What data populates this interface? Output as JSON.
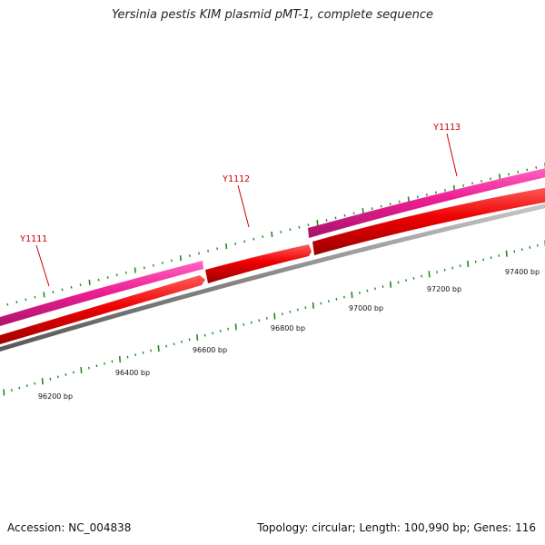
{
  "title": "Yersinia pestis KIM plasmid pMT-1, complete sequence",
  "genes": [
    {
      "label": "Y1111",
      "color": "#cc0000"
    },
    {
      "label": "Y1112",
      "color": "#cc0000"
    },
    {
      "label": "Y1113",
      "color": "#cc0000"
    }
  ],
  "scale_labels": [
    "96200 bp",
    "96400 bp",
    "96600 bp",
    "96800 bp",
    "97000 bp",
    "97200 bp",
    "97400 bp"
  ],
  "colors": {
    "outer_track": "#e8198b",
    "inner_track": "#ee0000",
    "backbone": "#888888",
    "tick": "#1e8a1e",
    "gene_label": "#cc0000"
  },
  "footer": {
    "accession": "Accession: NC_004838",
    "summary": "Topology: circular; Length: 100,990 bp; Genes: 116"
  }
}
